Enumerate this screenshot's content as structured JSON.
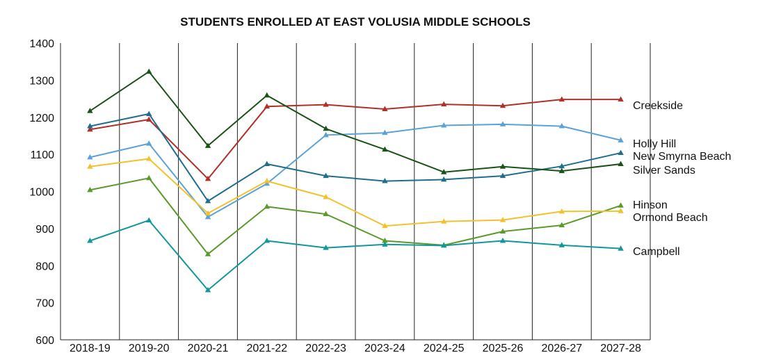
{
  "chart_data": {
    "type": "line",
    "title": "STUDENTS ENROLLED AT EAST VOLUSIA MIDDLE SCHOOLS",
    "xlabel": "",
    "ylabel": "",
    "categories": [
      "2018-19",
      "2019-20",
      "2020-21",
      "2021-22",
      "2022-23",
      "2023-24",
      "2024-25",
      "2025-26",
      "2026-27",
      "2027-28"
    ],
    "ylim": [
      600,
      1400
    ],
    "yticks": [
      600,
      700,
      800,
      900,
      1000,
      1100,
      1200,
      1300,
      1400
    ],
    "grid": "vertical",
    "legend": "right end labels",
    "series": [
      {
        "name": "Creekside",
        "color": "#b0302a",
        "values": [
          1167,
          1194,
          1034,
          1229,
          1234,
          1222,
          1235,
          1231,
          1248,
          1248
        ]
      },
      {
        "name": "Holly Hill",
        "color": "#5ba3d6",
        "values": [
          1092,
          1129,
          931,
          1021,
          1152,
          1158,
          1178,
          1181,
          1176,
          1138
        ]
      },
      {
        "name": "New Smyrna Beach",
        "color": "#1f6e8c",
        "values": [
          1176,
          1209,
          974,
          1074,
          1042,
          1028,
          1032,
          1042,
          1068,
          1104
        ]
      },
      {
        "name": "Silver Sands",
        "color": "#1a5218",
        "values": [
          1217,
          1323,
          1123,
          1259,
          1169,
          1113,
          1052,
          1067,
          1055,
          1074
        ]
      },
      {
        "name": "Hinson",
        "color": "#5a9a2c",
        "values": [
          1004,
          1036,
          831,
          959,
          939,
          867,
          855,
          892,
          909,
          962
        ]
      },
      {
        "name": "Ormond Beach",
        "color": "#f2c12e",
        "values": [
          1067,
          1088,
          941,
          1028,
          985,
          907,
          919,
          923,
          946,
          947
        ]
      },
      {
        "name": "Campbell",
        "color": "#12979b",
        "values": [
          867,
          922,
          734,
          867,
          848,
          857,
          854,
          867,
          855,
          846
        ]
      }
    ]
  }
}
